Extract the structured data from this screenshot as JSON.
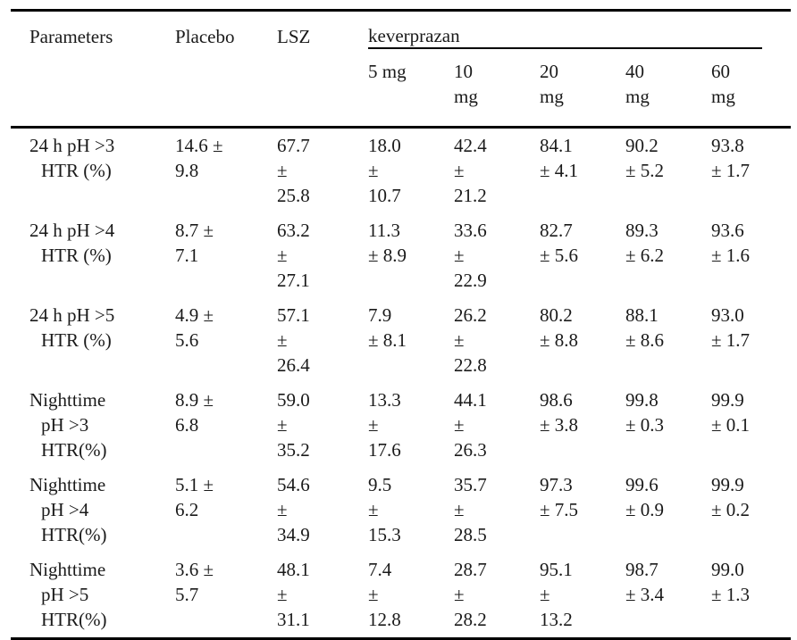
{
  "table": {
    "header": {
      "parameters": "Parameters",
      "placebo": "Placebo",
      "lsz": "LSZ",
      "group_label": "keverprazan",
      "doses": [
        "5 mg",
        "10\nmg",
        "20\nmg",
        "40\nmg",
        "60\nmg"
      ]
    },
    "rows": [
      {
        "parameter": "24 h pH >3\nHTR (%)",
        "values": [
          "14.6 ±\n9.8",
          "67.7\n±\n25.8",
          "18.0\n±\n10.7",
          "42.4\n±\n21.2",
          "84.1\n± 4.1",
          "90.2\n± 5.2",
          "93.8\n± 1.7"
        ]
      },
      {
        "parameter": "24 h pH >4\nHTR (%)",
        "values": [
          "8.7 ±\n7.1",
          "63.2\n±\n27.1",
          "11.3\n± 8.9",
          "33.6\n±\n22.9",
          "82.7\n± 5.6",
          "89.3\n± 6.2",
          "93.6\n± 1.6"
        ]
      },
      {
        "parameter": "24 h pH >5\nHTR (%)",
        "values": [
          "4.9 ±\n5.6",
          "57.1\n±\n26.4",
          "7.9\n± 8.1",
          "26.2\n±\n22.8",
          "80.2\n± 8.8",
          "88.1\n± 8.6",
          "93.0\n± 1.7"
        ]
      },
      {
        "parameter": "Nighttime\npH >3\nHTR(%)",
        "values": [
          "8.9 ±\n6.8",
          "59.0\n±\n35.2",
          "13.3\n±\n17.6",
          "44.1\n±\n26.3",
          "98.6\n± 3.8",
          "99.8\n± 0.3",
          "99.9\n± 0.1"
        ]
      },
      {
        "parameter": "Nighttime\npH >4\nHTR(%)",
        "values": [
          "5.1 ±\n6.2",
          "54.6\n±\n34.9",
          "9.5\n±\n15.3",
          "35.7\n±\n28.5",
          "97.3\n± 7.5",
          "99.6\n± 0.9",
          "99.9\n± 0.2"
        ]
      },
      {
        "parameter": "Nighttime\npH >5\nHTR(%)",
        "values": [
          "3.6 ±\n5.7",
          "48.1\n±\n31.1",
          "7.4\n±\n12.8",
          "28.7\n±\n28.2",
          "95.1\n±\n13.2",
          "98.7\n± 3.4",
          "99.0\n± 1.3"
        ]
      }
    ],
    "colors": {
      "text": "#1a1a1a",
      "rule": "#000000",
      "background": "#ffffff"
    }
  }
}
